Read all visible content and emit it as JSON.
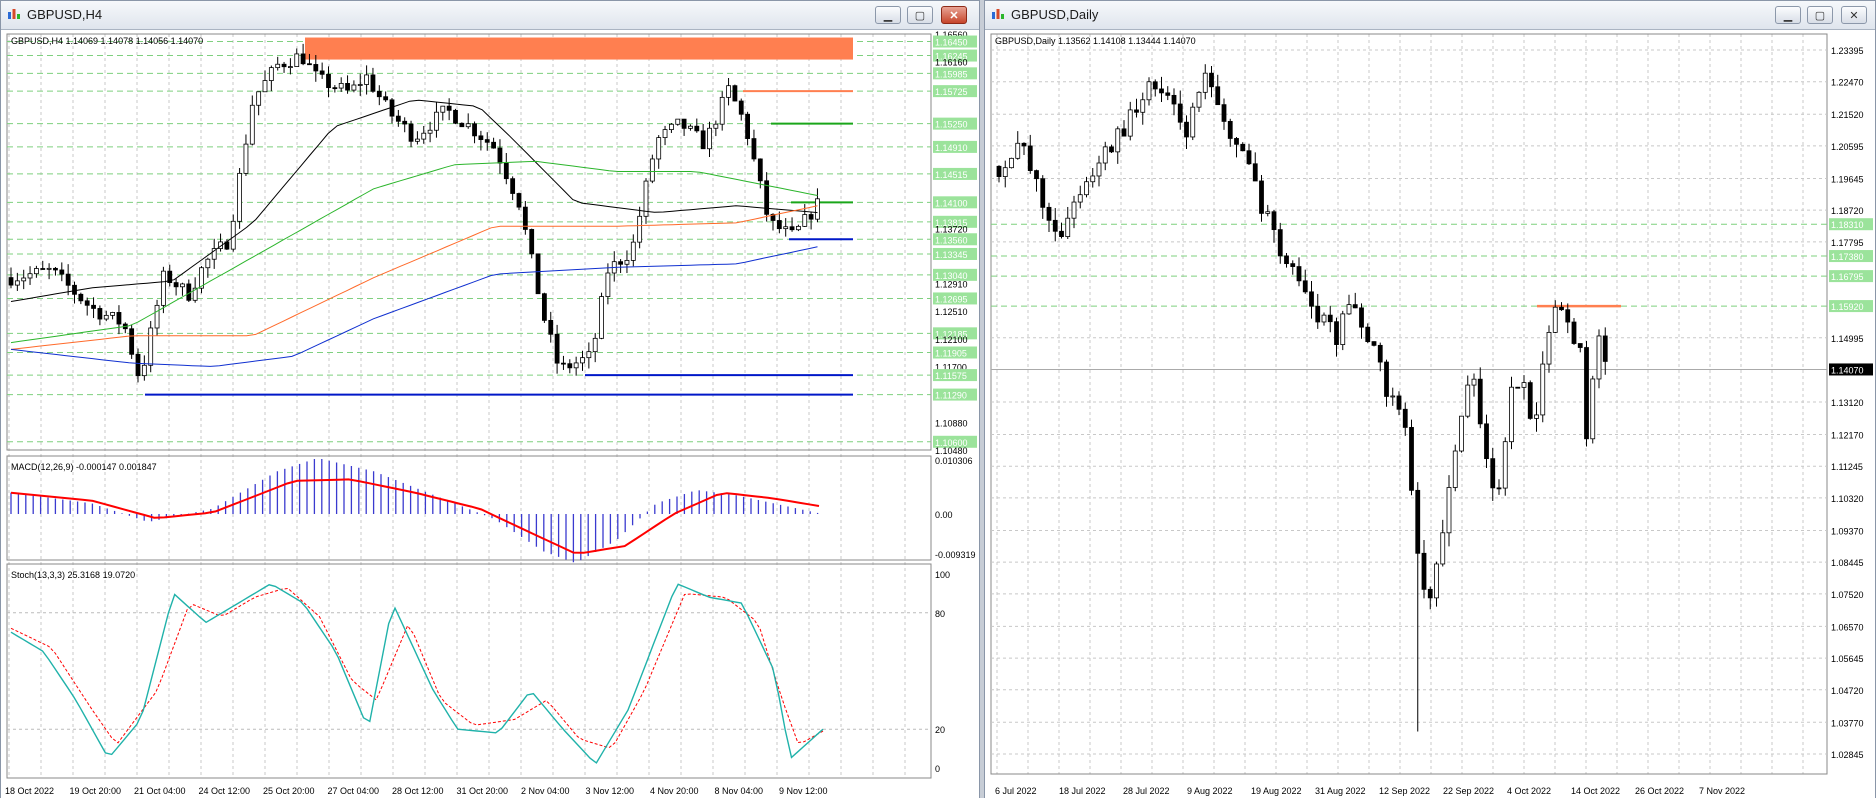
{
  "left_window": {
    "title": "GBPUSD,H4",
    "buttons": {
      "minimize": "▁",
      "maximize": "▢",
      "close": "✕"
    },
    "header": "GBPUSD,H4  1.14069 1.14078 1.14056 1.14070",
    "macd_label": "MACD(12,26,9) -0.000147 0.001847",
    "stoch_label": "Stoch(13,3,3) 25.3168 19.0720",
    "price_axis": [
      "1.16560",
      "1.16450",
      "1.16245",
      "1.16160",
      "1.15985",
      "1.15725",
      "1.15250",
      "1.14910",
      "1.14515",
      "1.14100",
      "1.13815",
      "1.13720",
      "1.13560",
      "1.13345",
      "1.13040",
      "1.12910",
      "1.12695",
      "1.12510",
      "1.12185",
      "1.12100",
      "1.11905",
      "1.11700",
      "1.11575",
      "1.11290",
      "1.10880",
      "1.10600",
      "1.10480"
    ],
    "macd_axis": [
      "0.010306",
      "0.00",
      "-0.009319"
    ],
    "stoch_axis": [
      "100",
      "80",
      "20",
      "0"
    ],
    "time_axis": [
      "18 Oct 2022",
      "19 Oct 20:00",
      "21 Oct 04:00",
      "24 Oct 12:00",
      "25 Oct 20:00",
      "27 Oct 04:00",
      "28 Oct 12:00",
      "31 Oct 20:00",
      "2 Nov 04:00",
      "3 Nov 12:00",
      "4 Nov 20:00",
      "8 Nov 04:00",
      "9 Nov 12:00"
    ]
  },
  "right_window": {
    "title": "GBPUSD,Daily",
    "buttons": {
      "minimize": "▁",
      "maximize": "▢",
      "close": "✕"
    },
    "header": "GBPUSD,Daily  1.13562 1.14108 1.13444 1.14070",
    "price_axis": [
      "1.23395",
      "1.22470",
      "1.21520",
      "1.20595",
      "1.19645",
      "1.18720",
      "1.18310",
      "1.17795",
      "1.17380",
      "1.16795",
      "1.15920",
      "1.14995",
      "1.14070",
      "1.13120",
      "1.12170",
      "1.11245",
      "1.10320",
      "1.09370",
      "1.08445",
      "1.07520",
      "1.06570",
      "1.05645",
      "1.04720",
      "1.03770",
      "1.02845"
    ],
    "time_axis": [
      "6 Jul 2022",
      "18 Jul 2022",
      "28 Jul 2022",
      "9 Aug 2022",
      "19 Aug 2022",
      "31 Aug 2022",
      "12 Sep 2022",
      "22 Sep 2022",
      "4 Oct 2022",
      "14 Oct 2022",
      "26 Oct 2022",
      "7 Nov 2022"
    ]
  },
  "colors": {
    "bull": "#ffffff",
    "bear": "#000000",
    "grid": "#c8c8c8",
    "level_green": "#7fd07f",
    "level_label_bg": "#9be39b",
    "resistance_zone": "#ff7f50",
    "support_blue": "#0018c8",
    "macd_signal": "#ff0000",
    "macd_hist": "#3a3acf",
    "stoch_main": "#20b2aa",
    "stoch_signal": "#ff0000",
    "ma_black": "#000000",
    "ma_green": "#2bb52b",
    "ma_orange": "#ff6a2a",
    "ma_blue": "#1030d0"
  }
}
